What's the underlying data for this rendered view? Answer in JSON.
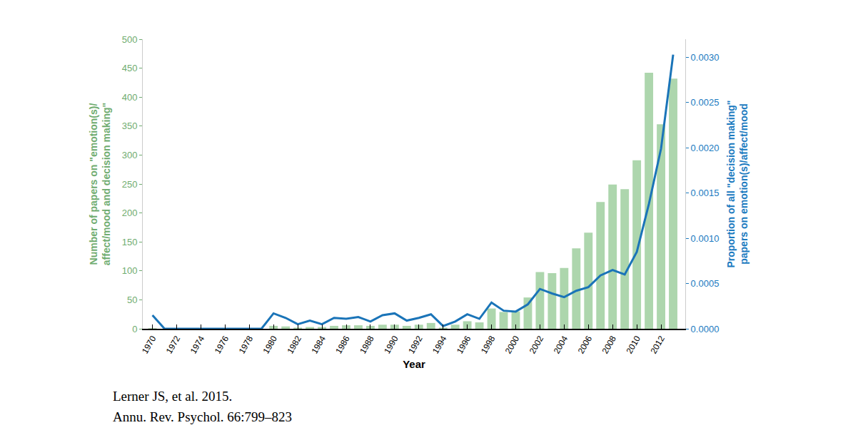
{
  "chart_data": {
    "type": "bar",
    "xlabel": "Year",
    "ylabel": "Number of papers on \"emotion(s)/\naffect/mood and decision making\"",
    "y2label": "Proportion of all \"decision making\"\npapers on emotion(s)/affect/mood",
    "x": [
      1970,
      1971,
      1972,
      1973,
      1974,
      1975,
      1976,
      1977,
      1978,
      1979,
      1980,
      1981,
      1982,
      1983,
      1984,
      1985,
      1986,
      1987,
      1988,
      1989,
      1990,
      1991,
      1992,
      1993,
      1994,
      1995,
      1996,
      1997,
      1998,
      1999,
      2000,
      2001,
      2002,
      2003,
      2004,
      2005,
      2006,
      2007,
      2008,
      2009,
      2010,
      2011,
      2012,
      2013
    ],
    "series": [
      {
        "type": "bar",
        "color": "#add6ad",
        "values": [
          1,
          0,
          0,
          0,
          0,
          0,
          0,
          0,
          0,
          0,
          5,
          4,
          2,
          3,
          3,
          5,
          6,
          6,
          5,
          7,
          7,
          5,
          7,
          10,
          2,
          7,
          13,
          11,
          35,
          29,
          30,
          54,
          98,
          96,
          105,
          139,
          166,
          219,
          249,
          241,
          291,
          442,
          353,
          432
        ]
      },
      {
        "type": "line",
        "axis": "y2",
        "color": "#1a74b8",
        "values": [
          0.00015,
          0,
          0,
          0,
          0,
          0,
          0,
          0,
          0,
          0,
          0.00017,
          0.00012,
          5e-05,
          9e-05,
          5e-05,
          0.00012,
          0.00011,
          0.00013,
          8e-05,
          0.00015,
          0.00017,
          9e-05,
          0.00012,
          0.00016,
          3e-05,
          8e-05,
          0.00016,
          0.00011,
          0.00029,
          0.0002,
          0.00019,
          0.00027,
          0.00044,
          0.00039,
          0.00035,
          0.00042,
          0.00046,
          0.00059,
          0.00065,
          0.0006,
          0.00085,
          0.00138,
          0.00199,
          0.00303
        ]
      }
    ],
    "xlim": [
      1969.2,
      2014
    ],
    "xticks": [
      1970,
      1972,
      1974,
      1976,
      1978,
      1980,
      1982,
      1984,
      1986,
      1988,
      1990,
      1992,
      1994,
      1996,
      1998,
      2000,
      2002,
      2004,
      2006,
      2008,
      2010,
      2012
    ],
    "ylim": [
      0,
      500
    ],
    "yticks": [
      0,
      50,
      100,
      150,
      200,
      250,
      300,
      350,
      400,
      450,
      500
    ],
    "y2lim": [
      0,
      0.0032
    ],
    "y2ticks": [
      {
        "value": 0,
        "label": "0.0000"
      },
      {
        "value": 0.0005,
        "label": "0.0005"
      },
      {
        "value": 0.001,
        "label": "0.0010"
      },
      {
        "value": 0.0015,
        "label": "0.0015"
      },
      {
        "value": 0.002,
        "label": "0.0020"
      },
      {
        "value": 0.0025,
        "label": "0.0025"
      },
      {
        "value": 0.003,
        "label": "0.0030"
      }
    ],
    "grid": false,
    "annotations": [
      "Lerner JS, et al. 2015.",
      "Annu. Rev. Psychol. 66:799–823"
    ]
  }
}
